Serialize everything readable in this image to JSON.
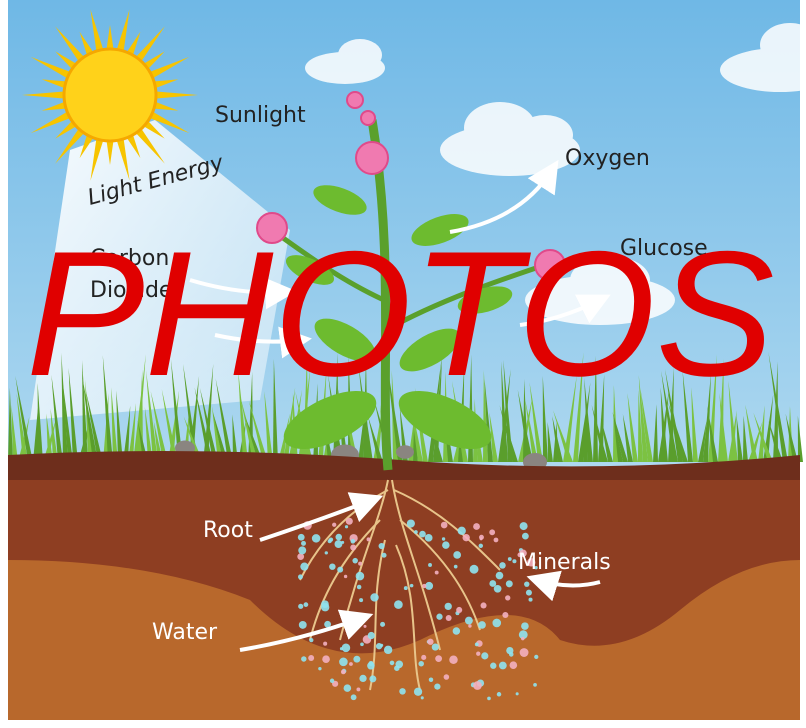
{
  "labels": {
    "sunlight": "Sunlight",
    "light_energy": "Light Energy",
    "carbon": "Carbon",
    "dioxide": "Dioxide",
    "oxygen": "Oxygen",
    "glucose": "Glucose",
    "root": "Root",
    "minerals": "Minerals",
    "water": "Water"
  },
  "watermark": "PHOTOS"
}
